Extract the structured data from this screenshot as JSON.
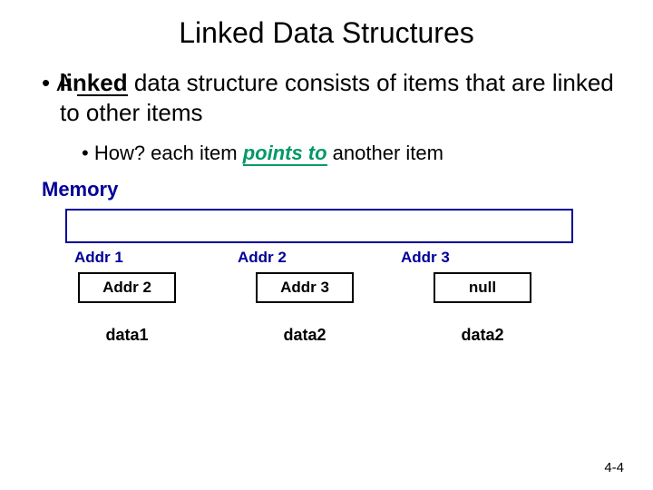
{
  "title": "Linked Data Structures",
  "bullet_main": {
    "prefix": "A ",
    "linked_word": "linked",
    "suffix": " data structure consists of items that are linked to other items"
  },
  "bullet_sub": {
    "prefix": "How? each item ",
    "points_to": "points to",
    "suffix": " another item"
  },
  "memory_label": "Memory",
  "addr_labels": [
    "Addr 1",
    "Addr 2",
    "Addr 3"
  ],
  "pointer_cells": [
    "Addr 2",
    "Addr 3",
    "null"
  ],
  "data_cells": [
    "data1",
    "data2",
    "data2"
  ],
  "colors": {
    "title": "#000000",
    "memory_accent": "#000099",
    "points_to": "#009966",
    "background": "#ffffff",
    "text": "#000000"
  },
  "page_number": "4-4"
}
